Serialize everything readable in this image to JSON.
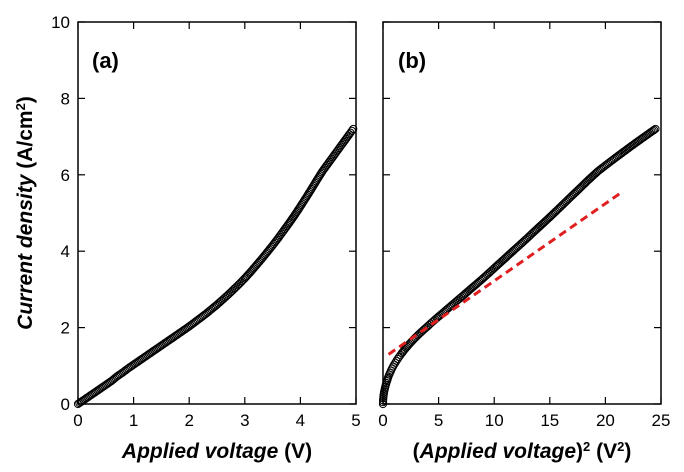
{
  "chart_data": [
    {
      "type": "scatter",
      "panel_label": "(a)",
      "xlabel_italic": "Applied voltage",
      "xlabel_unit": " (V)",
      "ylabel_italic": "Current density",
      "ylabel_unit_main": " (A/cm",
      "ylabel_unit_sup": "2",
      "ylabel_unit_close": ")",
      "xlim": [
        0,
        5
      ],
      "ylim": [
        0,
        10
      ],
      "xticks": [
        0,
        1,
        2,
        3,
        4,
        5
      ],
      "yticks": [
        0,
        2,
        4,
        6,
        8,
        10
      ],
      "grid": false,
      "series": [
        {
          "marker": "open-circle",
          "color": "#000000",
          "x": [
            0.0,
            0.1,
            0.2,
            0.3,
            0.4,
            0.5,
            0.6,
            0.7,
            0.8,
            0.9,
            1.0,
            1.1,
            1.2,
            1.3,
            1.4,
            1.5,
            1.6,
            1.7,
            1.8,
            1.9,
            2.0,
            2.1,
            2.2,
            2.3,
            2.4,
            2.5,
            2.6,
            2.7,
            2.8,
            2.9,
            3.0,
            3.1,
            3.2,
            3.3,
            3.4,
            3.5,
            3.6,
            3.7,
            3.8,
            3.9,
            4.0,
            4.1,
            4.2,
            4.3,
            4.4,
            4.5,
            4.6,
            4.7,
            4.8,
            4.9,
            4.95
          ],
          "y": [
            0.0,
            0.1,
            0.2,
            0.3,
            0.4,
            0.5,
            0.6,
            0.72,
            0.82,
            0.93,
            1.03,
            1.13,
            1.23,
            1.33,
            1.43,
            1.53,
            1.63,
            1.73,
            1.83,
            1.93,
            2.03,
            2.14,
            2.25,
            2.36,
            2.48,
            2.6,
            2.73,
            2.86,
            3.0,
            3.14,
            3.29,
            3.45,
            3.62,
            3.79,
            3.97,
            4.15,
            4.34,
            4.54,
            4.74,
            4.95,
            5.17,
            5.4,
            5.63,
            5.87,
            6.1,
            6.3,
            6.5,
            6.7,
            6.9,
            7.1,
            7.2
          ]
        }
      ]
    },
    {
      "type": "scatter",
      "panel_label": "(b)",
      "xlabel_open": "(",
      "xlabel_italic": "Applied voltage",
      "xlabel_close": ")",
      "xlabel_sup": "2",
      "xlabel_unit": " (V",
      "xlabel_unit_sup": "2",
      "xlabel_unit_close": ")",
      "xlim": [
        0,
        25
      ],
      "ylim": [
        0,
        10
      ],
      "xticks": [
        0,
        5,
        10,
        15,
        20,
        25
      ],
      "yticks": [
        0,
        2,
        4,
        6,
        8,
        10
      ],
      "grid": false,
      "series": [
        {
          "marker": "open-circle",
          "color": "#000000",
          "x": [
            0.0,
            0.01,
            0.04,
            0.09,
            0.16,
            0.25,
            0.36,
            0.49,
            0.64,
            0.81,
            1.0,
            1.21,
            1.44,
            1.69,
            1.96,
            2.25,
            2.56,
            2.89,
            3.24,
            3.61,
            4.0,
            4.41,
            4.84,
            5.29,
            5.76,
            6.25,
            6.76,
            7.29,
            7.84,
            8.41,
            9.0,
            9.61,
            10.24,
            10.89,
            11.56,
            12.25,
            12.96,
            13.69,
            14.44,
            15.21,
            16.0,
            16.81,
            17.64,
            18.49,
            19.36,
            20.25,
            21.16,
            22.09,
            23.04,
            24.01,
            24.5
          ],
          "y": [
            0.0,
            0.1,
            0.2,
            0.3,
            0.4,
            0.5,
            0.6,
            0.72,
            0.82,
            0.93,
            1.03,
            1.13,
            1.23,
            1.33,
            1.43,
            1.53,
            1.63,
            1.73,
            1.83,
            1.93,
            2.03,
            2.14,
            2.25,
            2.36,
            2.48,
            2.6,
            2.73,
            2.86,
            3.0,
            3.14,
            3.29,
            3.45,
            3.62,
            3.79,
            3.97,
            4.15,
            4.34,
            4.54,
            4.74,
            4.95,
            5.17,
            5.4,
            5.63,
            5.87,
            6.1,
            6.3,
            6.5,
            6.7,
            6.9,
            7.1,
            7.2
          ]
        },
        {
          "marker": "dashed-line",
          "color": "#e02020",
          "x": [
            0.5,
            21.5
          ],
          "y": [
            1.3,
            5.55
          ]
        }
      ]
    }
  ]
}
